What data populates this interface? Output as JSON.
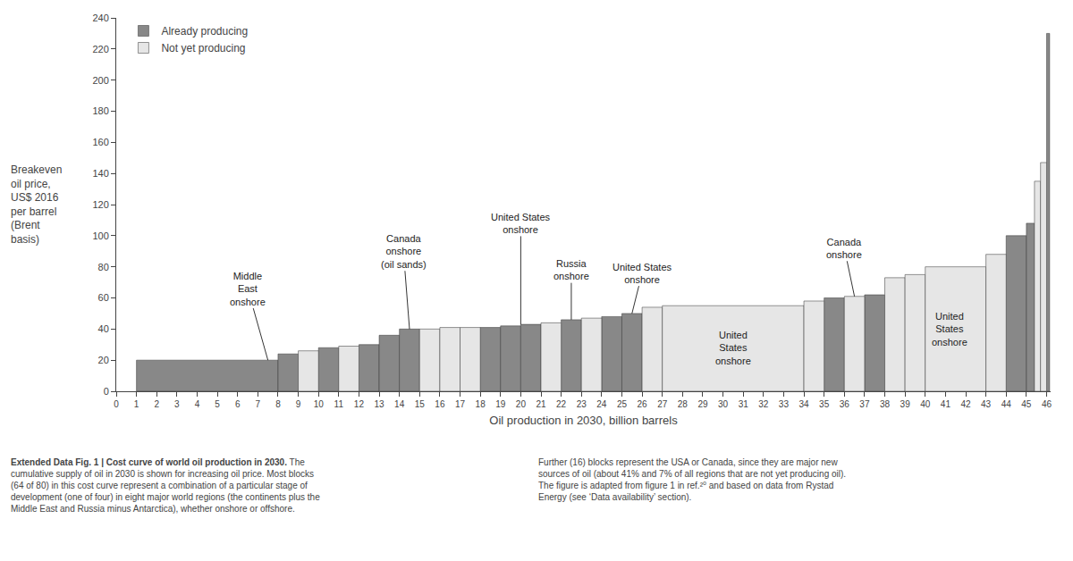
{
  "chart_data": {
    "type": "bar",
    "xlabel": "Oil production in 2030, billion barrels",
    "ylabel": "Breakeven\noil price,\nUS$ 2016\nper barrel\n(Brent\nbasis)",
    "xlim": [
      0,
      46.2
    ],
    "xticks": [
      0,
      1,
      2,
      3,
      4,
      5,
      6,
      7,
      8,
      9,
      10,
      11,
      12,
      13,
      14,
      15,
      16,
      17,
      18,
      19,
      20,
      21,
      22,
      23,
      24,
      25,
      26,
      27,
      28,
      29,
      30,
      31,
      32,
      33,
      34,
      35,
      36,
      37,
      38,
      39,
      40,
      41,
      42,
      43,
      44,
      45,
      46
    ],
    "ylim": [
      0,
      240
    ],
    "yticks": [
      0,
      20,
      40,
      60,
      80,
      100,
      120,
      140,
      160,
      180,
      200,
      220,
      240
    ],
    "grid": false,
    "legend": "upper left",
    "series": [
      {
        "name": "Already producing",
        "color": "#888888",
        "x_start": [
          1,
          8,
          10,
          12,
          13,
          14,
          18,
          19,
          20,
          22,
          24,
          25,
          35,
          37,
          44,
          45,
          46
        ],
        "x_end": [
          8,
          9,
          11,
          13,
          14,
          15,
          19,
          20,
          21,
          23,
          25,
          26,
          36,
          38,
          45,
          45.4,
          46.15
        ],
        "values": [
          20,
          24,
          28,
          30,
          36,
          40,
          41,
          42,
          43,
          46,
          48,
          50,
          60,
          62,
          100,
          108,
          230
        ]
      },
      {
        "name": "Not yet producing",
        "color": "#e6e6e6",
        "x_start": [
          9,
          11,
          15,
          16,
          17,
          21,
          23,
          26,
          27,
          34,
          36,
          38,
          39,
          40,
          43,
          45.4,
          45.7
        ],
        "x_end": [
          10,
          12,
          16,
          17,
          18,
          22,
          24,
          27,
          34,
          35,
          37,
          39,
          40,
          43,
          44,
          45.7,
          46
        ],
        "values": [
          26,
          29,
          40,
          41,
          41,
          44,
          47,
          54,
          55,
          58,
          61,
          73,
          75,
          80,
          88,
          135,
          147
        ]
      }
    ],
    "annotations": [
      {
        "text": "Middle\nEast\nonshore",
        "x": 7.5,
        "y": 20,
        "text_x": 6.5,
        "text_y": 66
      },
      {
        "text": "Canada\nonshore\n(oil sands)",
        "x": 14.5,
        "y": 40,
        "text_x": 14.2,
        "text_y": 90
      },
      {
        "text": "United States\nonshore",
        "x": 20.0,
        "y": 43,
        "text_x": 20.0,
        "text_y": 108
      },
      {
        "text": "Russia\nonshore",
        "x": 22.5,
        "y": 46,
        "text_x": 22.5,
        "text_y": 78
      },
      {
        "text": "United States\nonshore",
        "x": 25.5,
        "y": 50,
        "text_x": 26.0,
        "text_y": 76
      },
      {
        "text": "Canada\nonshore",
        "x": 36.5,
        "y": 61,
        "text_x": 36.0,
        "text_y": 92
      },
      {
        "text": "United\nStates\nonshore",
        "x": 30.5,
        "y": 28
      },
      {
        "text": "United\nStates\nonshore",
        "x": 41.2,
        "y": 40
      }
    ],
    "caption_bold": "Extended Data Fig. 1 | Cost curve of world oil production in 2030.",
    "caption_left": " The\ncumulative supply of oil in 2030 is shown for increasing oil price. Most blocks\n(64 of 80) in this cost curve represent a combination of a particular stage of\ndevelopment (one of four) in eight major world regions (the continents plus the\nMiddle East and Russia minus Antarctica), whether onshore or offshore.",
    "caption_right": "Further (16) blocks represent the USA or Canada, since they are major new\nsources of oil (about 41% and 7% of all regions that are not yet producing oil).\nThe figure is adapted from figure 1 in ref.²⁰ and based on data from Rystad\nEnergy (see ‘Data availability’ section)."
  }
}
